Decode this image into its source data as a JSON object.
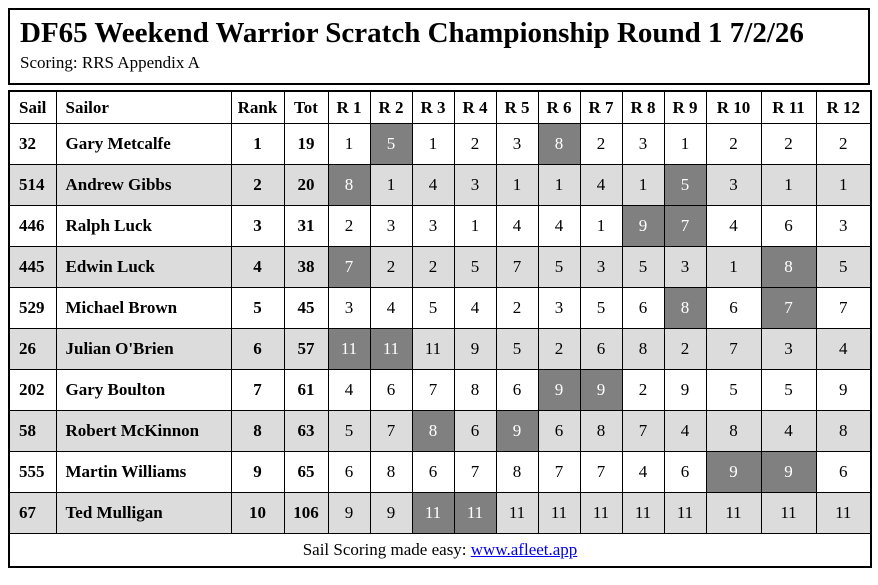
{
  "page": {
    "title": "DF65 Weekend Warrior Scratch Championship Round 1 7/2/26",
    "scoring_line": "Scoring: RRS Appendix A"
  },
  "table": {
    "columns": [
      "Sail",
      "Sailor",
      "Rank",
      "Tot",
      "R 1",
      "R 2",
      "R 3",
      "R 4",
      "R 5",
      "R 6",
      "R 7",
      "R 8",
      "R 9",
      "R 10",
      "R 11",
      "R 12"
    ],
    "rows": [
      {
        "sail": "32",
        "sailor": "Gary Metcalfe",
        "rank": "1",
        "tot": "19",
        "races": [
          {
            "v": "1"
          },
          {
            "v": "5",
            "d": true
          },
          {
            "v": "1"
          },
          {
            "v": "2"
          },
          {
            "v": "3"
          },
          {
            "v": "8",
            "d": true
          },
          {
            "v": "2"
          },
          {
            "v": "3"
          },
          {
            "v": "1"
          },
          {
            "v": "2"
          },
          {
            "v": "2"
          },
          {
            "v": "2"
          }
        ]
      },
      {
        "sail": "514",
        "sailor": "Andrew Gibbs",
        "rank": "2",
        "tot": "20",
        "races": [
          {
            "v": "8",
            "d": true
          },
          {
            "v": "1"
          },
          {
            "v": "4"
          },
          {
            "v": "3"
          },
          {
            "v": "1"
          },
          {
            "v": "1"
          },
          {
            "v": "4"
          },
          {
            "v": "1"
          },
          {
            "v": "5",
            "d": true
          },
          {
            "v": "3"
          },
          {
            "v": "1"
          },
          {
            "v": "1"
          }
        ]
      },
      {
        "sail": "446",
        "sailor": "Ralph Luck",
        "rank": "3",
        "tot": "31",
        "races": [
          {
            "v": "2"
          },
          {
            "v": "3"
          },
          {
            "v": "3"
          },
          {
            "v": "1"
          },
          {
            "v": "4"
          },
          {
            "v": "4"
          },
          {
            "v": "1"
          },
          {
            "v": "9",
            "d": true
          },
          {
            "v": "7",
            "d": true
          },
          {
            "v": "4"
          },
          {
            "v": "6"
          },
          {
            "v": "3"
          }
        ]
      },
      {
        "sail": "445",
        "sailor": "Edwin Luck",
        "rank": "4",
        "tot": "38",
        "races": [
          {
            "v": "7",
            "d": true
          },
          {
            "v": "2"
          },
          {
            "v": "2"
          },
          {
            "v": "5"
          },
          {
            "v": "7"
          },
          {
            "v": "5"
          },
          {
            "v": "3"
          },
          {
            "v": "5"
          },
          {
            "v": "3"
          },
          {
            "v": "1"
          },
          {
            "v": "8",
            "d": true
          },
          {
            "v": "5"
          }
        ]
      },
      {
        "sail": "529",
        "sailor": "Michael Brown",
        "rank": "5",
        "tot": "45",
        "races": [
          {
            "v": "3"
          },
          {
            "v": "4"
          },
          {
            "v": "5"
          },
          {
            "v": "4"
          },
          {
            "v": "2"
          },
          {
            "v": "3"
          },
          {
            "v": "5"
          },
          {
            "v": "6"
          },
          {
            "v": "8",
            "d": true
          },
          {
            "v": "6"
          },
          {
            "v": "7",
            "d": true
          },
          {
            "v": "7"
          }
        ]
      },
      {
        "sail": "26",
        "sailor": "Julian O'Brien",
        "rank": "6",
        "tot": "57",
        "races": [
          {
            "v": "11",
            "d": true
          },
          {
            "v": "11",
            "d": true
          },
          {
            "v": "11"
          },
          {
            "v": "9"
          },
          {
            "v": "5"
          },
          {
            "v": "2"
          },
          {
            "v": "6"
          },
          {
            "v": "8"
          },
          {
            "v": "2"
          },
          {
            "v": "7"
          },
          {
            "v": "3"
          },
          {
            "v": "4"
          }
        ]
      },
      {
        "sail": "202",
        "sailor": "Gary Boulton",
        "rank": "7",
        "tot": "61",
        "races": [
          {
            "v": "4"
          },
          {
            "v": "6"
          },
          {
            "v": "7"
          },
          {
            "v": "8"
          },
          {
            "v": "6"
          },
          {
            "v": "9",
            "d": true
          },
          {
            "v": "9",
            "d": true
          },
          {
            "v": "2"
          },
          {
            "v": "9"
          },
          {
            "v": "5"
          },
          {
            "v": "5"
          },
          {
            "v": "9"
          }
        ]
      },
      {
        "sail": "58",
        "sailor": "Robert McKinnon",
        "rank": "8",
        "tot": "63",
        "races": [
          {
            "v": "5"
          },
          {
            "v": "7"
          },
          {
            "v": "8",
            "d": true
          },
          {
            "v": "6"
          },
          {
            "v": "9",
            "d": true
          },
          {
            "v": "6"
          },
          {
            "v": "8"
          },
          {
            "v": "7"
          },
          {
            "v": "4"
          },
          {
            "v": "8"
          },
          {
            "v": "4"
          },
          {
            "v": "8"
          }
        ]
      },
      {
        "sail": "555",
        "sailor": "Martin Williams",
        "rank": "9",
        "tot": "65",
        "races": [
          {
            "v": "6"
          },
          {
            "v": "8"
          },
          {
            "v": "6"
          },
          {
            "v": "7"
          },
          {
            "v": "8"
          },
          {
            "v": "7"
          },
          {
            "v": "7"
          },
          {
            "v": "4"
          },
          {
            "v": "6"
          },
          {
            "v": "9",
            "d": true
          },
          {
            "v": "9",
            "d": true
          },
          {
            "v": "6"
          }
        ]
      },
      {
        "sail": "67",
        "sailor": "Ted Mulligan",
        "rank": "10",
        "tot": "106",
        "races": [
          {
            "v": "9"
          },
          {
            "v": "9"
          },
          {
            "v": "11",
            "d": true
          },
          {
            "v": "11",
            "d": true
          },
          {
            "v": "11"
          },
          {
            "v": "11"
          },
          {
            "v": "11"
          },
          {
            "v": "11"
          },
          {
            "v": "11"
          },
          {
            "v": "11"
          },
          {
            "v": "11"
          },
          {
            "v": "11"
          }
        ]
      }
    ]
  },
  "footer": {
    "text": "Sail Scoring made easy: ",
    "link_text": "www.afleet.app"
  },
  "colors": {
    "discard_bg": "#808080",
    "discard_text": "#ffffff",
    "alt_row_bg": "#dcdcdc",
    "border": "#000000",
    "link": "#0000ee"
  }
}
